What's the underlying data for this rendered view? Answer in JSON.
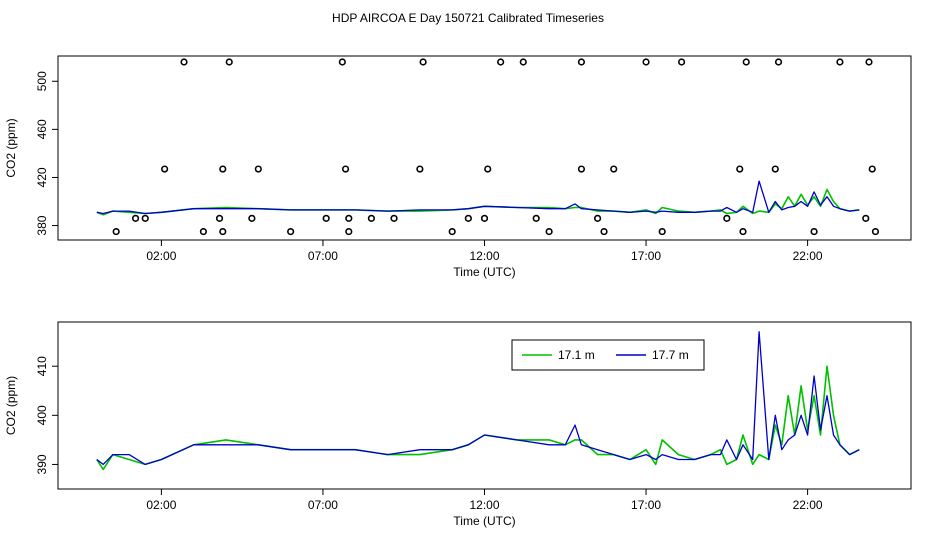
{
  "title": "HDP AIRCOA E  Day 150721  Calibrated Timeseries",
  "colors": {
    "series_a": "#00c000",
    "series_b": "#0000cc",
    "axis": "#000000",
    "cal": "#000000"
  },
  "chart_data": [
    {
      "type": "line",
      "xlabel": "Time (UTC)",
      "ylabel": "CO2 (ppm)",
      "xlim": [
        -1.2,
        25.2
      ],
      "ylim": [
        368,
        521
      ],
      "xticks": [
        2,
        7,
        12,
        17,
        22
      ],
      "xtick_labels": [
        "02:00",
        "07:00",
        "12:00",
        "17:00",
        "22:00"
      ],
      "yticks": [
        380,
        420,
        460,
        500
      ],
      "ytick_labels": [
        "380",
        "420",
        "460",
        "500"
      ],
      "series": [
        {
          "key": "a",
          "color": "#00c000",
          "x": [
            0,
            0.2,
            0.5,
            1,
            1.5,
            2,
            3,
            4,
            5,
            6,
            7,
            8,
            9,
            10,
            11,
            11.5,
            12,
            13,
            14,
            14.5,
            14.8,
            15,
            15.5,
            16,
            16.5,
            17,
            17.3,
            17.5,
            18,
            18.5,
            19,
            19.3,
            19.5,
            19.8,
            20,
            20.3,
            20.5,
            20.8,
            21,
            21.2,
            21.4,
            21.6,
            21.8,
            22,
            22.2,
            22.4,
            22.6,
            22.8,
            23,
            23.3,
            23.6
          ],
          "y": [
            391,
            389,
            392,
            391,
            390,
            391,
            394,
            395,
            394,
            393,
            393,
            393,
            392,
            392,
            393,
            394,
            396,
            395,
            395,
            394,
            395,
            395,
            392,
            392,
            391,
            393,
            390,
            395,
            392,
            391,
            392,
            393,
            390,
            391,
            396,
            390,
            392,
            391,
            398,
            394,
            404,
            396,
            406,
            397,
            404,
            396,
            410,
            400,
            394,
            392,
            393
          ]
        },
        {
          "key": "b",
          "color": "#0000cc",
          "x": [
            0,
            0.2,
            0.5,
            1,
            1.5,
            2,
            3,
            4,
            5,
            6,
            7,
            8,
            9,
            10,
            11,
            11.5,
            12,
            13,
            14,
            14.5,
            14.8,
            15,
            15.5,
            16,
            16.5,
            17,
            17.3,
            17.5,
            18,
            18.5,
            19,
            19.3,
            19.5,
            19.8,
            20,
            20.3,
            20.5,
            20.8,
            21,
            21.2,
            21.4,
            21.6,
            21.8,
            22,
            22.2,
            22.4,
            22.6,
            22.8,
            23,
            23.3,
            23.6
          ],
          "y": [
            391,
            390,
            392,
            392,
            390,
            391,
            394,
            394,
            394,
            393,
            393,
            393,
            392,
            393,
            393,
            394,
            396,
            395,
            394,
            394,
            398,
            394,
            393,
            392,
            391,
            392,
            391,
            392,
            391,
            391,
            392,
            392,
            395,
            391,
            394,
            391,
            417,
            391,
            400,
            393,
            395,
            396,
            400,
            396,
            408,
            397,
            404,
            396,
            394,
            392,
            393
          ]
        }
      ],
      "cal_points": {
        "x": [
          0.6,
          1.2,
          1.5,
          2.1,
          2.7,
          3.3,
          3.8,
          3.9,
          3.9,
          4.1,
          4.8,
          5,
          6,
          7.1,
          7.6,
          7.7,
          7.8,
          7.8,
          8.5,
          9.2,
          10,
          10.1,
          11,
          11.5,
          12,
          12.1,
          12.5,
          13.2,
          13.6,
          14,
          15,
          15,
          15.5,
          15.7,
          16,
          17,
          17.5,
          18.1,
          19.5,
          19.9,
          20,
          20.1,
          21,
          21.1,
          22.2,
          23,
          23.8,
          23.9,
          24,
          24.1
        ],
        "y": [
          375,
          386,
          386,
          427,
          516,
          375,
          386,
          375,
          427,
          516,
          386,
          427,
          375,
          386,
          516,
          427,
          386,
          375,
          386,
          386,
          427,
          516,
          375,
          386,
          386,
          427,
          516,
          516,
          386,
          375,
          427,
          516,
          386,
          375,
          427,
          516,
          375,
          516,
          386,
          427,
          375,
          516,
          427,
          516,
          375,
          516,
          386,
          516,
          427,
          375
        ]
      }
    },
    {
      "type": "line",
      "xlabel": "Time (UTC)",
      "ylabel": "CO2 (ppm)",
      "xlim": [
        -1.2,
        25.2
      ],
      "ylim": [
        385,
        419
      ],
      "xticks": [
        2,
        7,
        12,
        17,
        22
      ],
      "xtick_labels": [
        "02:00",
        "07:00",
        "12:00",
        "17:00",
        "22:00"
      ],
      "yticks": [
        390,
        400,
        410
      ],
      "ytick_labels": [
        "390",
        "400",
        "410"
      ],
      "legend_loc": "top-center",
      "series": [
        {
          "key": "a",
          "name": "17.1 m",
          "color": "#00c000",
          "x": [
            0,
            0.2,
            0.5,
            1,
            1.5,
            2,
            3,
            4,
            5,
            6,
            7,
            8,
            9,
            10,
            11,
            11.5,
            12,
            13,
            14,
            14.5,
            14.8,
            15,
            15.5,
            16,
            16.5,
            17,
            17.3,
            17.5,
            18,
            18.5,
            19,
            19.3,
            19.5,
            19.8,
            20,
            20.3,
            20.5,
            20.8,
            21,
            21.2,
            21.4,
            21.6,
            21.8,
            22,
            22.2,
            22.4,
            22.6,
            22.8,
            23,
            23.3,
            23.6
          ],
          "y": [
            391,
            389,
            392,
            391,
            390,
            391,
            394,
            395,
            394,
            393,
            393,
            393,
            392,
            392,
            393,
            394,
            396,
            395,
            395,
            394,
            395,
            395,
            392,
            392,
            391,
            393,
            390,
            395,
            392,
            391,
            392,
            393,
            390,
            391,
            396,
            390,
            392,
            391,
            398,
            394,
            404,
            396,
            406,
            397,
            404,
            396,
            410,
            400,
            394,
            392,
            393
          ]
        },
        {
          "key": "b",
          "name": "17.7 m",
          "color": "#0000cc",
          "x": [
            0,
            0.2,
            0.5,
            1,
            1.5,
            2,
            3,
            4,
            5,
            6,
            7,
            8,
            9,
            10,
            11,
            11.5,
            12,
            13,
            14,
            14.5,
            14.8,
            15,
            15.5,
            16,
            16.5,
            17,
            17.3,
            17.5,
            18,
            18.5,
            19,
            19.3,
            19.5,
            19.8,
            20,
            20.3,
            20.5,
            20.8,
            21,
            21.2,
            21.4,
            21.6,
            21.8,
            22,
            22.2,
            22.4,
            22.6,
            22.8,
            23,
            23.3,
            23.6
          ],
          "y": [
            391,
            390,
            392,
            392,
            390,
            391,
            394,
            394,
            394,
            393,
            393,
            393,
            392,
            393,
            393,
            394,
            396,
            395,
            394,
            394,
            398,
            394,
            393,
            392,
            391,
            392,
            391,
            392,
            391,
            391,
            392,
            392,
            395,
            391,
            394,
            391,
            417,
            391,
            400,
            393,
            395,
            396,
            400,
            396,
            408,
            397,
            404,
            396,
            394,
            392,
            393
          ]
        }
      ]
    }
  ]
}
